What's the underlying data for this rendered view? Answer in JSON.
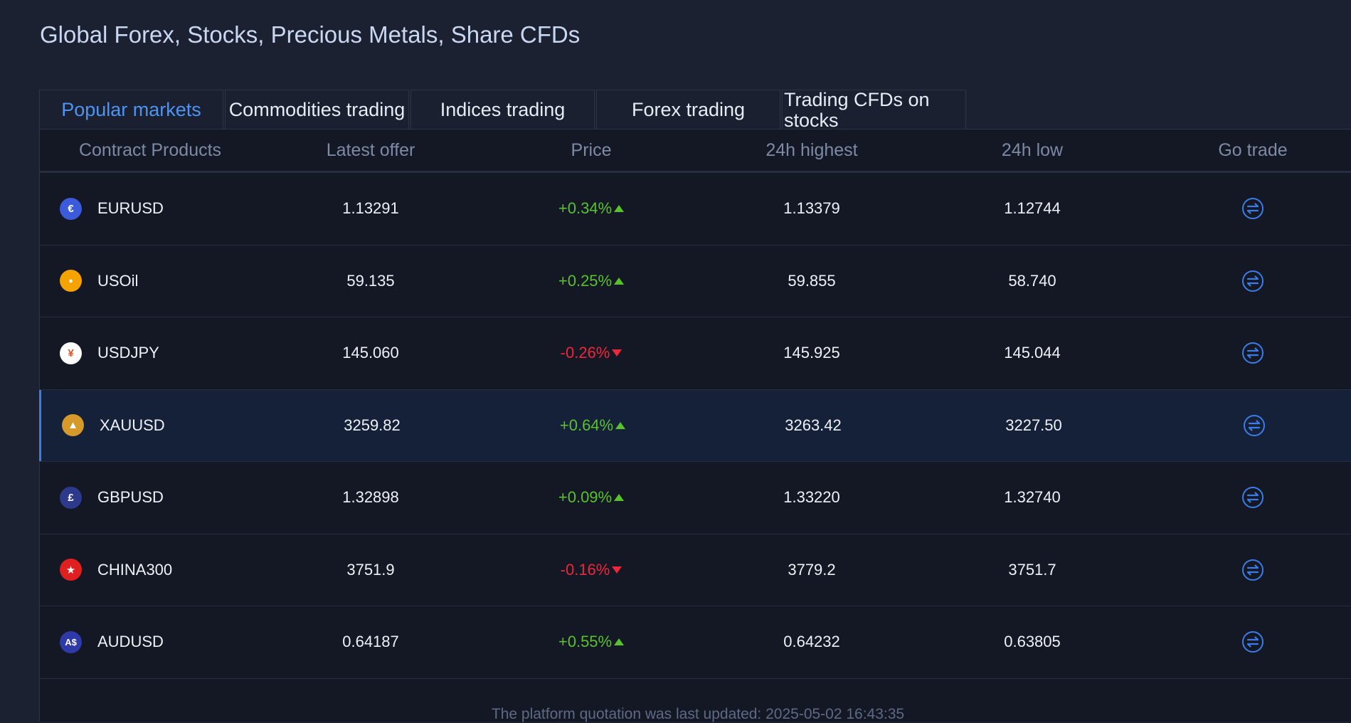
{
  "page": {
    "title": "Global Forex, Stocks, Precious Metals, Share CFDs",
    "footer": "The platform quotation was last updated: 2025-05-02 16:43:35"
  },
  "tabs": [
    {
      "label": "Popular markets",
      "active": true
    },
    {
      "label": "Commodities trading",
      "active": false
    },
    {
      "label": "Indices trading",
      "active": false
    },
    {
      "label": "Forex trading",
      "active": false
    },
    {
      "label": "Trading CFDs on stocks",
      "active": false
    }
  ],
  "table": {
    "headers": {
      "product": "Contract Products",
      "offer": "Latest offer",
      "price": "Price",
      "high": "24h highest",
      "low": "24h low",
      "trade": "Go trade"
    },
    "rows": [
      {
        "symbol": "EURUSD",
        "icon": "euro-icon",
        "glyph": "€",
        "icon_color": "#3b5bdb",
        "offer": "1.13291",
        "change": "+0.34%",
        "direction": "up",
        "high": "1.13379",
        "low": "1.12744",
        "selected": false
      },
      {
        "symbol": "USOil",
        "icon": "oil-drop-icon",
        "glyph": "●",
        "icon_color": "#f5a300",
        "offer": "59.135",
        "change": "+0.25%",
        "direction": "up",
        "high": "59.855",
        "low": "58.740",
        "selected": false
      },
      {
        "symbol": "USDJPY",
        "icon": "yen-icon",
        "glyph": "¥",
        "icon_color": "#ffffff",
        "offer": "145.060",
        "change": "-0.26%",
        "direction": "down",
        "high": "145.925",
        "low": "145.044",
        "selected": false
      },
      {
        "symbol": "XAUUSD",
        "icon": "gold-bars-icon",
        "glyph": "▲",
        "icon_color": "#d69a2a",
        "offer": "3259.82",
        "change": "+0.64%",
        "direction": "up",
        "high": "3263.42",
        "low": "3227.50",
        "selected": true
      },
      {
        "symbol": "GBPUSD",
        "icon": "pound-icon",
        "glyph": "£",
        "icon_color": "#2d3a8c",
        "offer": "1.32898",
        "change": "+0.09%",
        "direction": "up",
        "high": "1.33220",
        "low": "1.32740",
        "selected": false
      },
      {
        "symbol": "CHINA300",
        "icon": "china-flag-icon",
        "glyph": "★",
        "icon_color": "#e02020",
        "offer": "3751.9",
        "change": "-0.16%",
        "direction": "down",
        "high": "3779.2",
        "low": "3751.7",
        "selected": false
      },
      {
        "symbol": "AUDUSD",
        "icon": "aud-icon",
        "glyph": "A$",
        "icon_color": "#2d3aa8",
        "offer": "0.64187",
        "change": "+0.55%",
        "direction": "up",
        "high": "0.64232",
        "low": "0.63805",
        "selected": false
      }
    ]
  },
  "colors": {
    "accent": "#4d93f2",
    "up": "#58c22d",
    "down": "#f0263a",
    "trade_icon": "#3b7ce6"
  }
}
